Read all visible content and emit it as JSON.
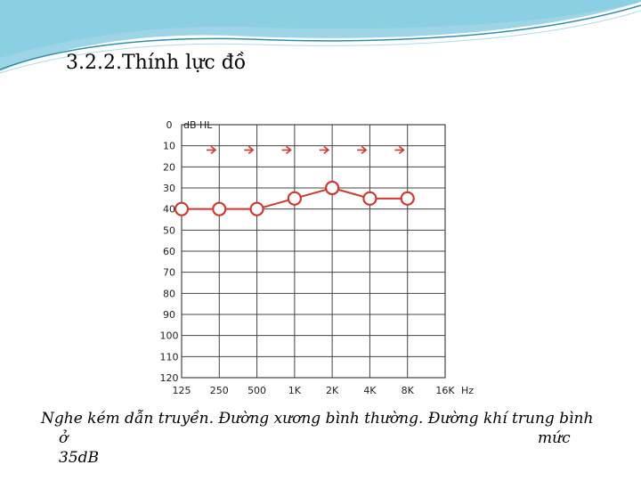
{
  "slide": {
    "title": "3.2.2.Thính lực đồ",
    "caption_line1": "Nghe kém dẫn truyền. Đường xương bình thường. Đường khí  trung bình",
    "caption_o": "ở",
    "caption_muc": "mức",
    "caption_line3": "35dB"
  },
  "colors": {
    "accent_teal": "#4fb3d1",
    "accent_light": "#a9dcea",
    "series_red": "#d2382e",
    "grid": "#444444"
  },
  "chart_data": {
    "type": "line",
    "ylabel": "dB HL",
    "xlabel": "",
    "x_unit": "Hz",
    "x_tick_labels": [
      "125",
      "250",
      "500",
      "1K",
      "2K",
      "4K",
      "8K",
      "16K"
    ],
    "y_tick_labels": [
      "0",
      "10",
      "20",
      "30",
      "40",
      "50",
      "60",
      "70",
      "80",
      "90",
      "100",
      "110",
      "120"
    ],
    "ylim": [
      0,
      120
    ],
    "y_inverted": true,
    "grid": true,
    "series": [
      {
        "marker": "arrow-right",
        "line": false,
        "x": [
          "125",
          "250",
          "500",
          "1K",
          "2K",
          "4K"
        ],
        "values": [
          12,
          12,
          12,
          12,
          12,
          12
        ]
      },
      {
        "marker": "circle",
        "line": true,
        "x": [
          "125",
          "250",
          "500",
          "1K",
          "2K",
          "4K",
          "8K"
        ],
        "values": [
          40,
          40,
          40,
          35,
          30,
          35,
          35
        ]
      }
    ]
  }
}
